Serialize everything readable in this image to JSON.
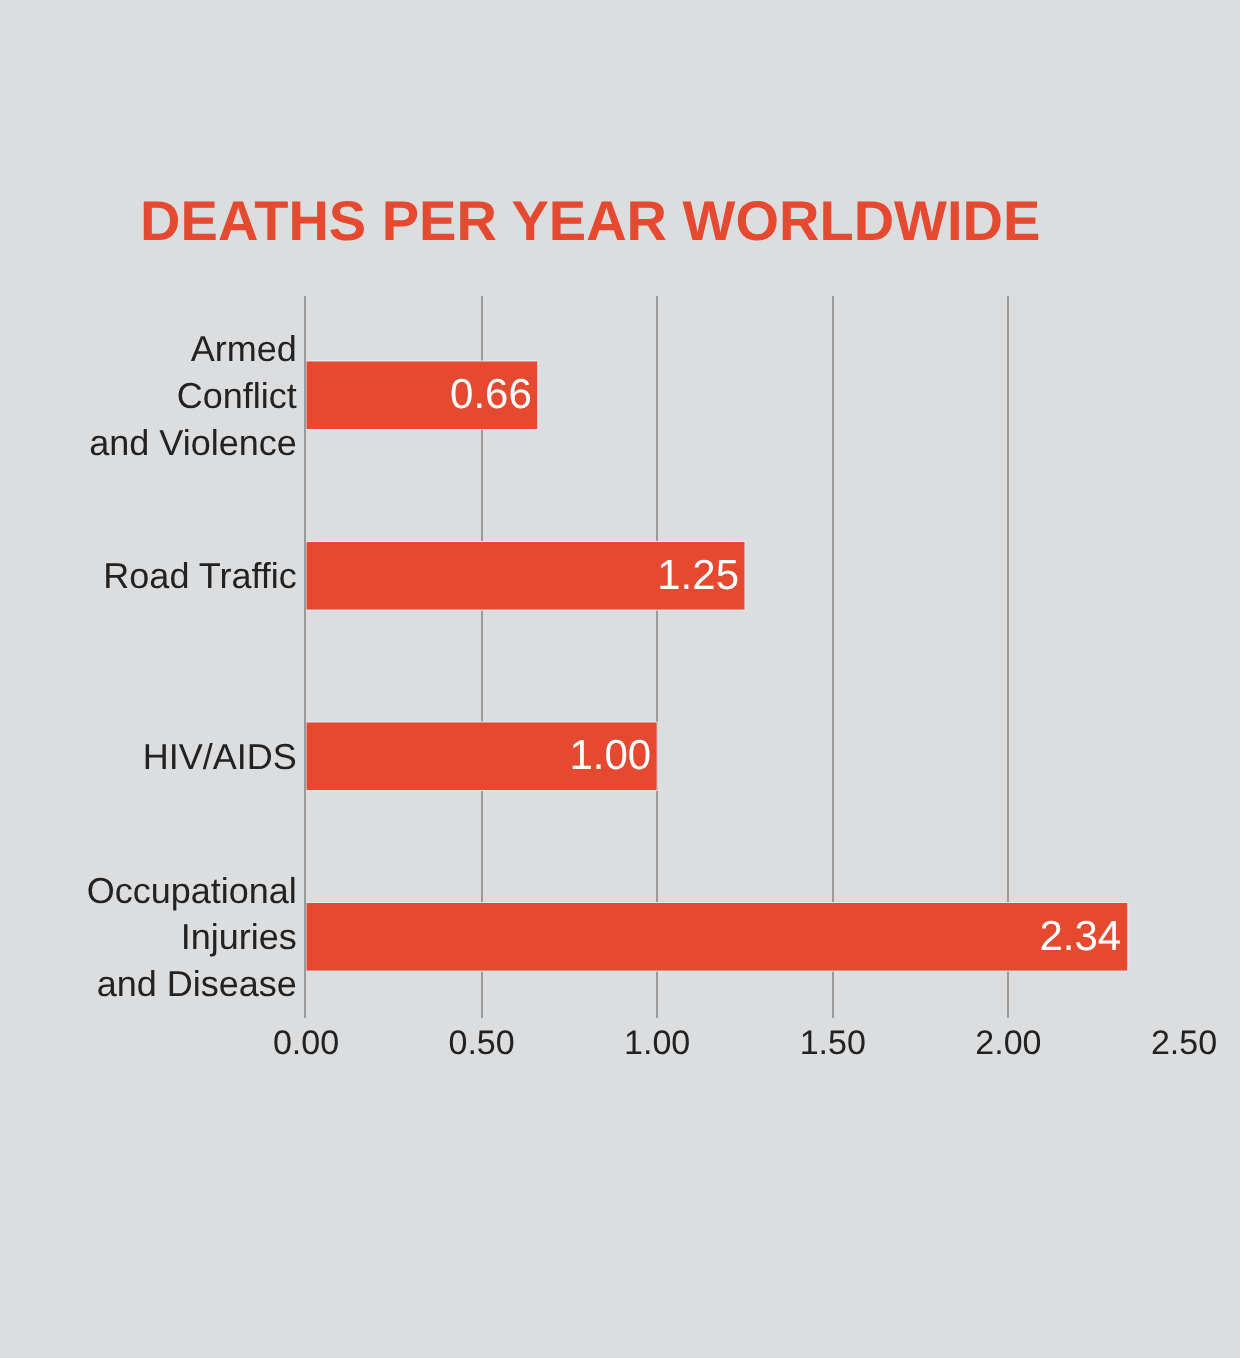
{
  "chart_data": {
    "type": "bar",
    "orientation": "horizontal",
    "title": "DEATHS PER YEAR WORLDWIDE",
    "categories": [
      "Armed Conflict and Violence",
      "Road Traffic",
      "HIV/AIDS",
      "Occupational Injuries and Disease"
    ],
    "values": [
      0.66,
      1.25,
      1.0,
      2.34
    ],
    "value_labels": [
      "0.66",
      "1.25",
      "1.00",
      "2.34"
    ],
    "color": "#e5492f",
    "xlim": [
      0,
      2.5
    ],
    "xticks": [
      {
        "value": 0,
        "label": "0.00"
      },
      {
        "value": 0.5,
        "label": "0.50"
      },
      {
        "value": 1,
        "label": "1.00"
      },
      {
        "value": 1.5,
        "label": "1.50"
      },
      {
        "value": 2,
        "label": "2.00"
      },
      {
        "value": 2.5,
        "label": "2.50"
      }
    ],
    "grid": "x",
    "legend": false
  }
}
